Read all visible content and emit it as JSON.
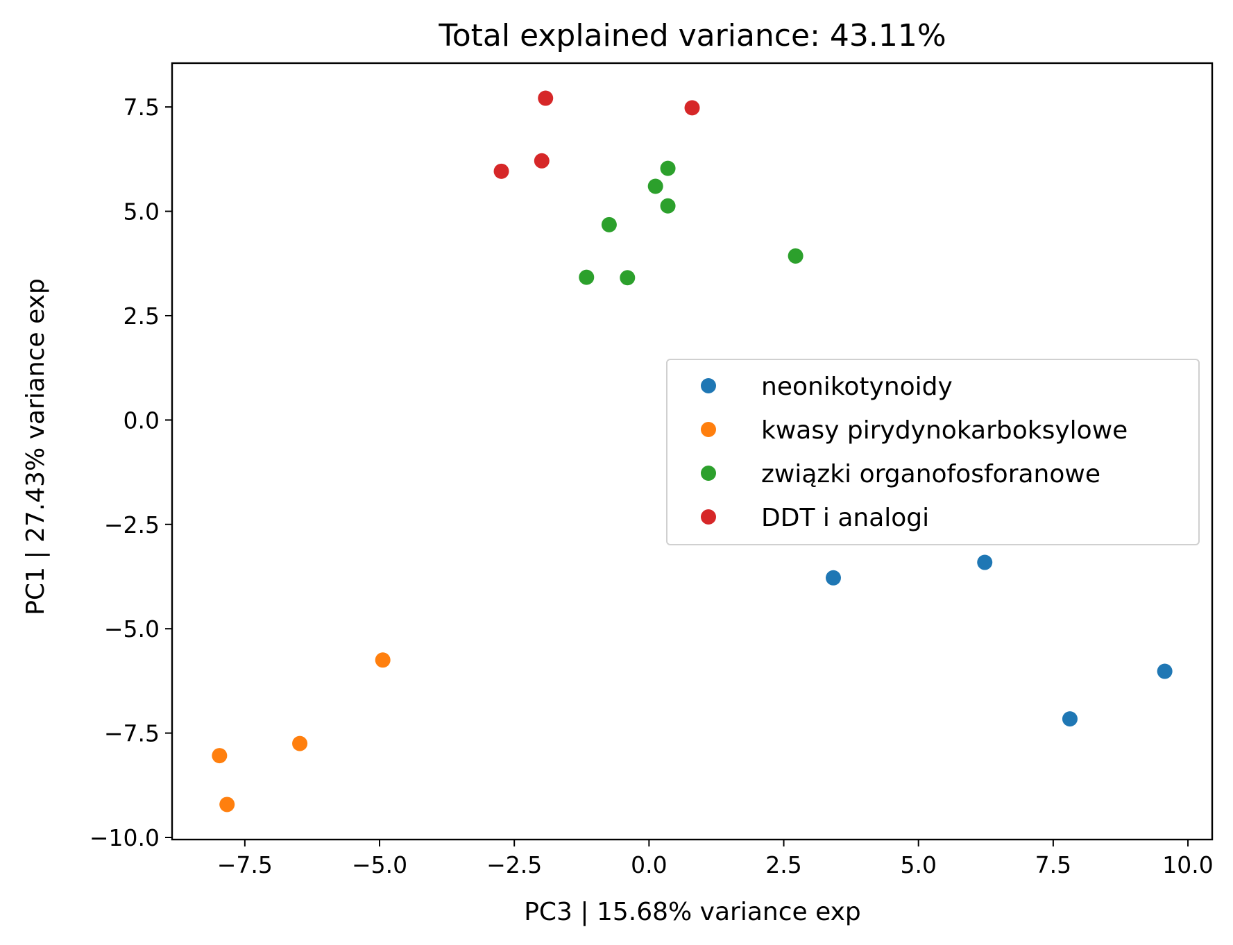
{
  "chart_data": {
    "type": "scatter",
    "title": "Total explained variance: 43.11%",
    "xlabel": "PC3    |    15.68% variance exp",
    "ylabel": "PC1    |    27.43% variance exp",
    "xlim": [
      -8.85,
      10.45
    ],
    "ylim": [
      -10.05,
      8.55
    ],
    "xticks": [
      -7.5,
      -5.0,
      -2.5,
      0.0,
      2.5,
      5.0,
      7.5,
      10.0
    ],
    "xtick_labels": [
      "−7.5",
      "−5.0",
      "−2.5",
      "0.0",
      "2.5",
      "5.0",
      "7.5",
      "10.0"
    ],
    "yticks": [
      7.5,
      5.0,
      2.5,
      0.0,
      -2.5,
      -5.0,
      -7.5,
      -10.0
    ],
    "ytick_labels": [
      "7.5",
      "5.0",
      "2.5",
      "0.0",
      "−2.5",
      "−5.0",
      "−7.5",
      "−10.0"
    ],
    "grid": false,
    "legend_position": "center-right",
    "series": [
      {
        "name": "neonikotynoidy",
        "color": "#1f77b4",
        "points": [
          [
            3.42,
            -3.78
          ],
          [
            6.23,
            -3.41
          ],
          [
            7.81,
            -7.16
          ],
          [
            9.57,
            -6.02
          ]
        ]
      },
      {
        "name": "kwasy pirydynokarboksylowe",
        "color": "#ff7f0e",
        "points": [
          [
            -4.94,
            -5.75
          ],
          [
            -6.48,
            -7.75
          ],
          [
            -7.97,
            -8.04
          ],
          [
            -7.83,
            -9.21
          ]
        ]
      },
      {
        "name": "związki organofosforanowe",
        "color": "#2ca02c",
        "points": [
          [
            0.35,
            6.03
          ],
          [
            0.12,
            5.6
          ],
          [
            0.35,
            5.13
          ],
          [
            -0.74,
            4.68
          ],
          [
            2.72,
            3.93
          ],
          [
            -1.16,
            3.42
          ],
          [
            -0.4,
            3.41
          ]
        ]
      },
      {
        "name": "DDT i analogi",
        "color": "#d62728",
        "points": [
          [
            -1.92,
            7.71
          ],
          [
            0.8,
            7.48
          ],
          [
            -1.99,
            6.21
          ],
          [
            -2.74,
            5.96
          ]
        ]
      }
    ]
  }
}
